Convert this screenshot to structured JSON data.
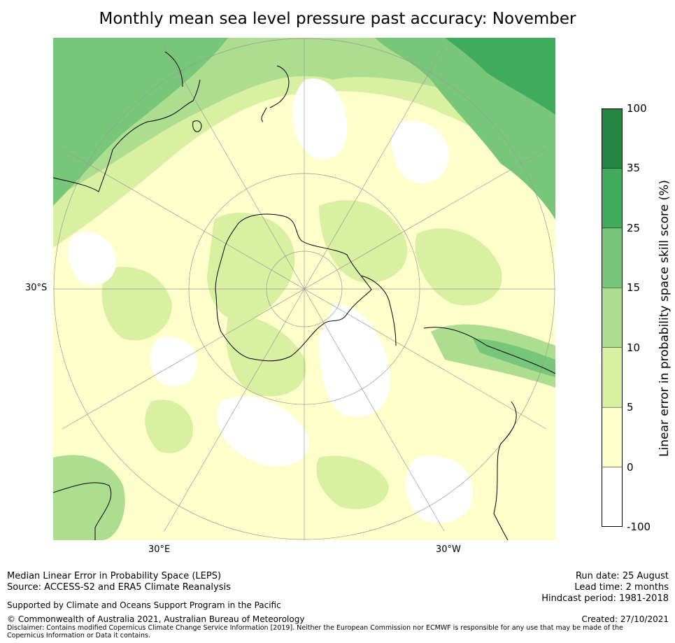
{
  "title": "Monthly mean sea level pressure past accuracy: November",
  "map": {
    "projection": "south-polar-stereographic",
    "lat_labels": [
      "30°S"
    ],
    "lon_labels": [
      "30°E",
      "30°W"
    ],
    "land_outline_color": "#000000",
    "graticule_color": "#9a9a9a"
  },
  "colorbar": {
    "label": "Linear error in probability space skill score (%)",
    "tick_labels": [
      "-100",
      "0",
      "5",
      "10",
      "15",
      "25",
      "35",
      "100"
    ],
    "bins": [
      {
        "from": -100,
        "to": 0,
        "color": "#ffffff"
      },
      {
        "from": 0,
        "to": 5,
        "color": "#ffffcc"
      },
      {
        "from": 5,
        "to": 10,
        "color": "#d9f0a3"
      },
      {
        "from": 10,
        "to": 15,
        "color": "#addd8e"
      },
      {
        "from": 15,
        "to": 25,
        "color": "#78c679"
      },
      {
        "from": 25,
        "to": 35,
        "color": "#41ab5d"
      },
      {
        "from": 35,
        "to": 100,
        "color": "#238443"
      }
    ]
  },
  "footer": {
    "left": [
      "Median Linear Error in Probability Space (LEPS)",
      "Source: ACCESS-S2 and ERA5 Climate Reanalysis"
    ],
    "support": "Supported by Climate and Oceans Support Program in the Pacific",
    "copyright": "© Commonwealth of Australia 2021, Australian Bureau of Meteorology",
    "disclaimer": "Disclaimer: Contains modified Copernicus Climate Change Service Information [2019]. Neither the European Commission nor ECMWF is responsible for any use that may be made of the Copernicus Information or Data it contains.",
    "right": [
      "Run date: 25 August",
      "Lead time: 2 months",
      "Hindcast period: 1981-2018"
    ],
    "created": "Created: 27/10/2021"
  }
}
